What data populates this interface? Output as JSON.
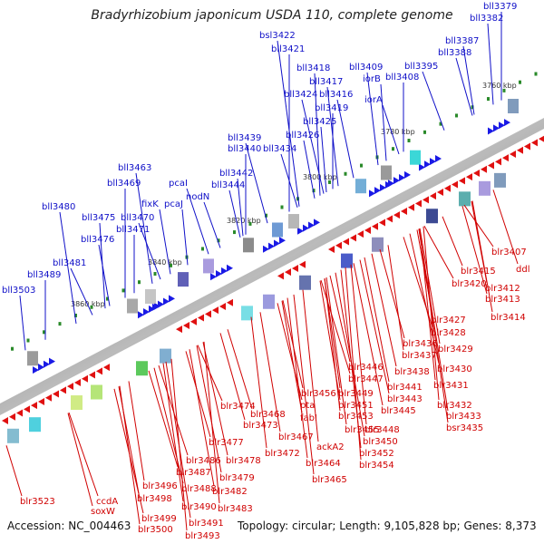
{
  "title": "Bradyrhizobium japonicum USDA 110, complete genome",
  "footer": {
    "accession": "Accession: NC_004463",
    "summary": "Topology: circular; Length: 9,105,828 bp; Genes: 8,373"
  },
  "scale_labels": [
    "3760 kbp",
    "3780 kbp",
    "3800 kbp",
    "3820 kbp",
    "3840 kbp",
    "3860 kbp"
  ],
  "forward_genes": [
    "bll3379",
    "bll3382",
    "bll3387",
    "bll3388",
    "bll3395",
    "bll3408",
    "iorB",
    "bll3409",
    "iorA",
    "bsl3422",
    "bll3421",
    "bll3418",
    "bll3417",
    "bll3416",
    "bll3424",
    "bll3419",
    "bll3425",
    "bll3426",
    "bll3434",
    "bll3439",
    "bll3440",
    "bll3442",
    "bll3444",
    "bll3463",
    "pcaI",
    "bll3469",
    "pcaJ",
    "fixK",
    "nodN",
    "bll3470",
    "bll3471",
    "bll3475",
    "bll3476",
    "bll3480",
    "bll3481",
    "bll3489",
    "bll3503"
  ],
  "reverse_genes": [
    "blr3407",
    "ddl",
    "blr3415",
    "blr3412",
    "blr3420",
    "blr3413",
    "blr3414",
    "blr3427",
    "blr3428",
    "blr3436",
    "blr3429",
    "blr3437",
    "blr3430",
    "blr3438",
    "blr3446",
    "blr3431",
    "blr3447",
    "blr3441",
    "blr3456",
    "blr3449",
    "blr3443",
    "pta",
    "blr3451",
    "blr3432",
    "blr3445",
    "blr3468",
    "fabI",
    "blr3453",
    "blr3433",
    "blr3474",
    "blr3455",
    "blr3448",
    "bsr3435",
    "blr3473",
    "blr3467",
    "ackA2",
    "blr3450",
    "blr3477",
    "blr3452",
    "blr3472",
    "blr3486",
    "blr3478",
    "blr3464",
    "blr3454",
    "blr3487",
    "blr3479",
    "blr3465",
    "blr3496",
    "blr3488",
    "blr3482",
    "blr3498",
    "blr3523",
    "ccdA",
    "soxW",
    "blr3490",
    "blr3483",
    "blr3499",
    "blr3491",
    "blr3500",
    "blr3493"
  ]
}
